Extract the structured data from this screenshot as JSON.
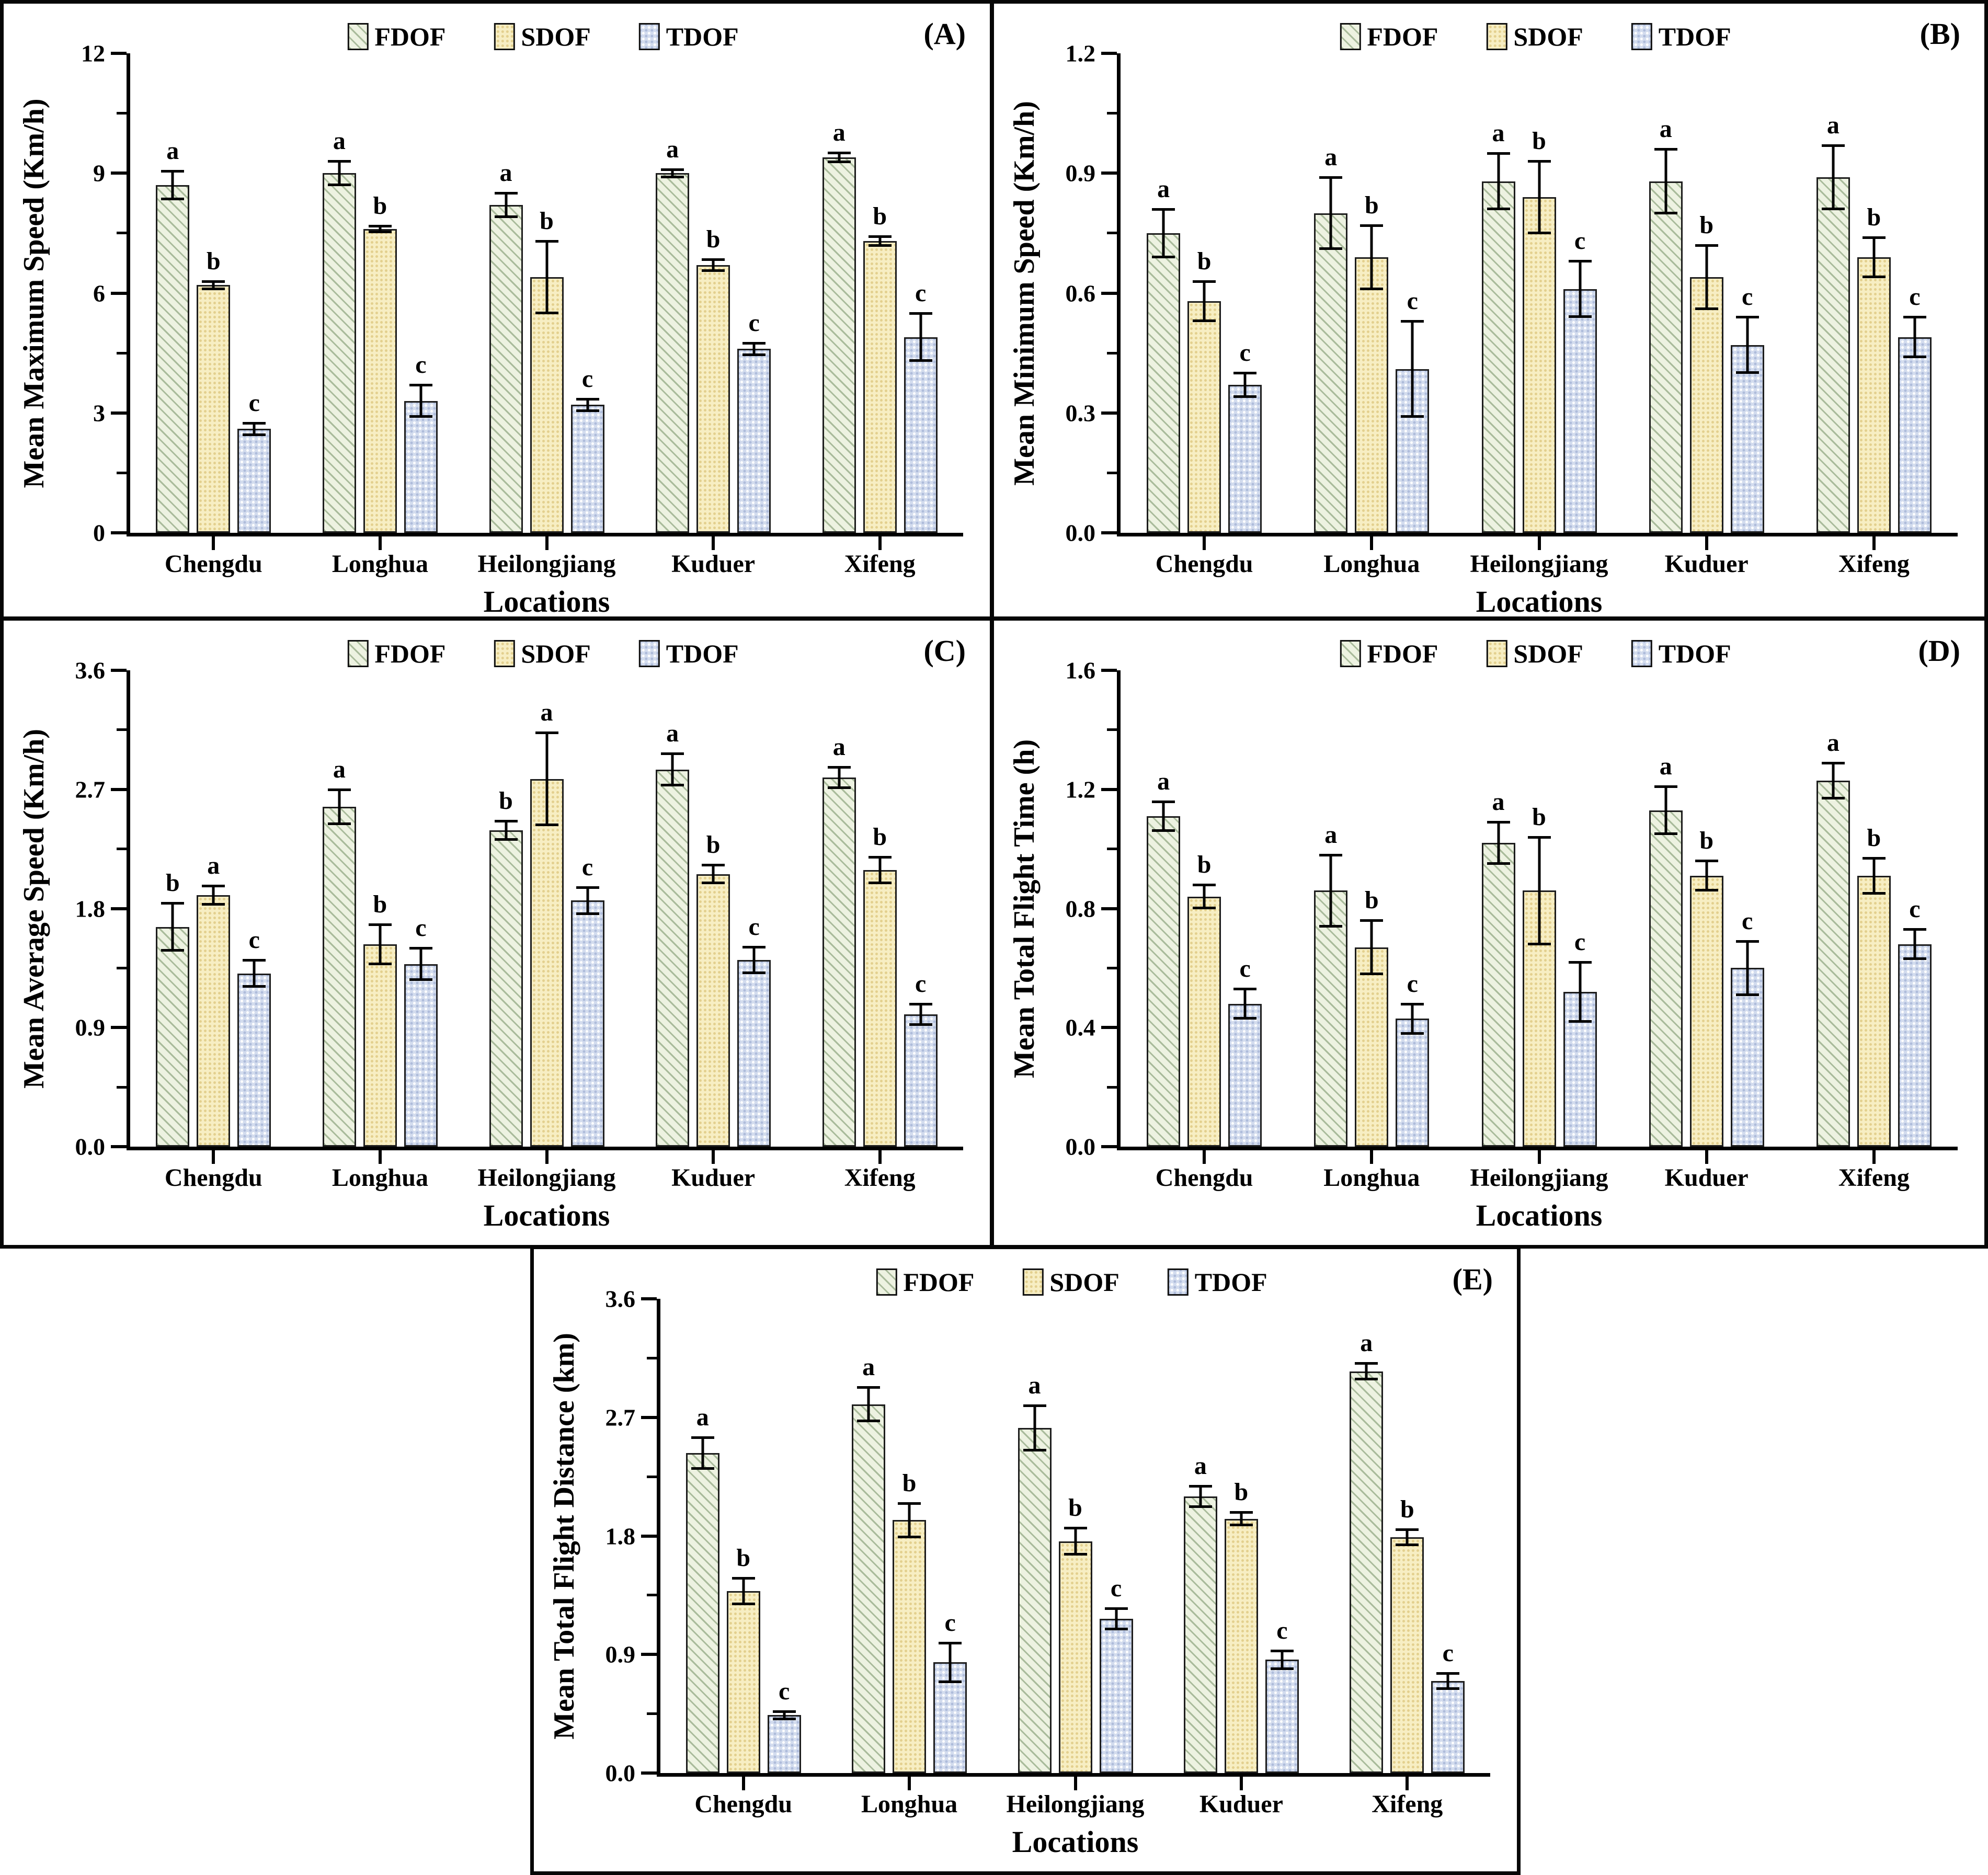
{
  "figure": {
    "background": "#ffffff",
    "legend": [
      "FDOF",
      "SDOF",
      "TDOF"
    ],
    "x_axis_title": "Locations",
    "categories": [
      "Chengdu",
      "Longhua",
      "Heilongjiang",
      "Kuduer",
      "Xifeng"
    ],
    "panel_labels": [
      "(A)",
      "(B)",
      "(C)",
      "(D)",
      "(E)"
    ]
  },
  "colors": {
    "fdof_fill": "#edf2e1",
    "fdof_hatch": "#a9bb9b",
    "sdof_fill": "#f7eec3",
    "sdof_dot": "#e3d08e",
    "tdof_fill": "#d3dcee",
    "tdof_dot": "#aebcdb",
    "axis": "#000000",
    "text": "#000000"
  },
  "chart_data": [
    {
      "type": "bar",
      "panel_label": "(A)",
      "ylabel": "Mean Maximum Speed (Km/h)",
      "xlabel": "Locations",
      "ylim": [
        0,
        12
      ],
      "ytick_values": [
        0,
        3,
        6,
        9,
        12
      ],
      "ytick_labels": [
        "0",
        "3",
        "6",
        "9",
        "12"
      ],
      "grid": false,
      "legend_position": "top-center",
      "categories": [
        "Chengdu",
        "Longhua",
        "Heilongjiang",
        "Kuduer",
        "Xifeng"
      ],
      "series": [
        {
          "name": "FDOF",
          "values": [
            8.7,
            9.0,
            8.2,
            9.0,
            9.4
          ],
          "errors": [
            0.35,
            0.3,
            0.3,
            0.1,
            0.12
          ],
          "sig_letters": [
            "a",
            "a",
            "a",
            "a",
            "a"
          ]
        },
        {
          "name": "SDOF",
          "values": [
            6.2,
            7.6,
            6.4,
            6.7,
            7.3
          ],
          "errors": [
            0.1,
            0.08,
            0.9,
            0.15,
            0.12
          ],
          "sig_letters": [
            "b",
            "b",
            "b",
            "b",
            "b"
          ]
        },
        {
          "name": "TDOF",
          "values": [
            2.6,
            3.3,
            3.2,
            4.6,
            4.9
          ],
          "errors": [
            0.15,
            0.4,
            0.15,
            0.15,
            0.6
          ],
          "sig_letters": [
            "c",
            "c",
            "c",
            "c",
            "c"
          ]
        }
      ]
    },
    {
      "type": "bar",
      "panel_label": "(B)",
      "ylabel": "Mean Minimum Speed (Km/h)",
      "xlabel": "Locations",
      "ylim": [
        0,
        1.2
      ],
      "ytick_values": [
        0,
        0.3,
        0.6,
        0.9,
        1.2
      ],
      "ytick_labels": [
        "0.0",
        "0.3",
        "0.6",
        "0.9",
        "1.2"
      ],
      "grid": false,
      "legend_position": "top-center",
      "categories": [
        "Chengdu",
        "Longhua",
        "Heilongjiang",
        "Kuduer",
        "Xifeng"
      ],
      "series": [
        {
          "name": "FDOF",
          "values": [
            0.75,
            0.8,
            0.88,
            0.88,
            0.89
          ],
          "errors": [
            0.06,
            0.09,
            0.07,
            0.08,
            0.08
          ],
          "sig_letters": [
            "a",
            "a",
            "a",
            "a",
            "a"
          ]
        },
        {
          "name": "SDOF",
          "values": [
            0.58,
            0.69,
            0.84,
            0.64,
            0.69
          ],
          "errors": [
            0.05,
            0.08,
            0.09,
            0.08,
            0.05
          ],
          "sig_letters": [
            "b",
            "b",
            "b",
            "b",
            "b"
          ]
        },
        {
          "name": "TDOF",
          "values": [
            0.37,
            0.41,
            0.61,
            0.47,
            0.49
          ],
          "errors": [
            0.03,
            0.12,
            0.07,
            0.07,
            0.05
          ],
          "sig_letters": [
            "c",
            "c",
            "c",
            "c",
            "c"
          ]
        }
      ]
    },
    {
      "type": "bar",
      "panel_label": "(C)",
      "ylabel": "Mean Average Speed (Km/h)",
      "xlabel": "Locations",
      "ylim": [
        0,
        3.6
      ],
      "ytick_values": [
        0,
        0.9,
        1.8,
        2.7,
        3.6
      ],
      "ytick_labels": [
        "0.0",
        "0.9",
        "1.8",
        "2.7",
        "3.6"
      ],
      "grid": false,
      "legend_position": "top-center",
      "categories": [
        "Chengdu",
        "Longhua",
        "Heilongjiang",
        "Kuduer",
        "Xifeng"
      ],
      "series": [
        {
          "name": "FDOF",
          "values": [
            1.66,
            2.57,
            2.39,
            2.85,
            2.79
          ],
          "errors": [
            0.18,
            0.13,
            0.07,
            0.12,
            0.08
          ],
          "sig_letters": [
            "b",
            "a",
            "b",
            "a",
            "a"
          ]
        },
        {
          "name": "SDOF",
          "values": [
            1.9,
            1.53,
            2.78,
            2.06,
            2.09
          ],
          "errors": [
            0.07,
            0.15,
            0.35,
            0.07,
            0.1
          ],
          "sig_letters": [
            "a",
            "b",
            "a",
            "b",
            "b"
          ]
        },
        {
          "name": "TDOF",
          "values": [
            1.31,
            1.38,
            1.86,
            1.41,
            1.0
          ],
          "errors": [
            0.1,
            0.12,
            0.1,
            0.1,
            0.08
          ],
          "sig_letters": [
            "c",
            "c",
            "c",
            "c",
            "c"
          ]
        }
      ]
    },
    {
      "type": "bar",
      "panel_label": "(D)",
      "ylabel": "Mean Total Flight Time (h)",
      "xlabel": "Locations",
      "ylim": [
        0,
        1.6
      ],
      "ytick_values": [
        0,
        0.4,
        0.8,
        1.2,
        1.6
      ],
      "ytick_labels": [
        "0.0",
        "0.4",
        "0.8",
        "1.2",
        "1.6"
      ],
      "grid": false,
      "legend_position": "top-center",
      "categories": [
        "Chengdu",
        "Longhua",
        "Heilongjiang",
        "Kuduer",
        "Xifeng"
      ],
      "series": [
        {
          "name": "FDOF",
          "values": [
            1.11,
            0.86,
            1.02,
            1.13,
            1.23
          ],
          "errors": [
            0.05,
            0.12,
            0.07,
            0.08,
            0.06
          ],
          "sig_letters": [
            "a",
            "a",
            "a",
            "a",
            "a"
          ]
        },
        {
          "name": "SDOF",
          "values": [
            0.84,
            0.67,
            0.86,
            0.91,
            0.91
          ],
          "errors": [
            0.04,
            0.09,
            0.18,
            0.05,
            0.06
          ],
          "sig_letters": [
            "b",
            "b",
            "b",
            "b",
            "b"
          ]
        },
        {
          "name": "TDOF",
          "values": [
            0.48,
            0.43,
            0.52,
            0.6,
            0.68
          ],
          "errors": [
            0.05,
            0.05,
            0.1,
            0.09,
            0.05
          ],
          "sig_letters": [
            "c",
            "c",
            "c",
            "c",
            "c"
          ]
        }
      ]
    },
    {
      "type": "bar",
      "panel_label": "(E)",
      "ylabel": "Mean Total Flight Distance (km)",
      "xlabel": "Locations",
      "ylim": [
        0,
        3.6
      ],
      "ytick_values": [
        0,
        0.9,
        1.8,
        2.7,
        3.6
      ],
      "ytick_labels": [
        "0.0",
        "0.9",
        "1.8",
        "2.7",
        "3.6"
      ],
      "grid": false,
      "legend_position": "top-center",
      "categories": [
        "Chengdu",
        "Longhua",
        "Heilongjiang",
        "Kuduer",
        "Xifeng"
      ],
      "series": [
        {
          "name": "FDOF",
          "values": [
            2.43,
            2.8,
            2.62,
            2.1,
            3.05
          ],
          "errors": [
            0.12,
            0.13,
            0.17,
            0.08,
            0.06
          ],
          "sig_letters": [
            "a",
            "a",
            "a",
            "a",
            "a"
          ]
        },
        {
          "name": "SDOF",
          "values": [
            1.38,
            1.92,
            1.76,
            1.93,
            1.79
          ],
          "errors": [
            0.1,
            0.13,
            0.1,
            0.05,
            0.06
          ],
          "sig_letters": [
            "b",
            "b",
            "b",
            "b",
            "b"
          ]
        },
        {
          "name": "TDOF",
          "values": [
            0.44,
            0.84,
            1.17,
            0.86,
            0.7
          ],
          "errors": [
            0.03,
            0.15,
            0.08,
            0.07,
            0.06
          ],
          "sig_letters": [
            "c",
            "c",
            "c",
            "c",
            "c"
          ]
        }
      ]
    }
  ]
}
